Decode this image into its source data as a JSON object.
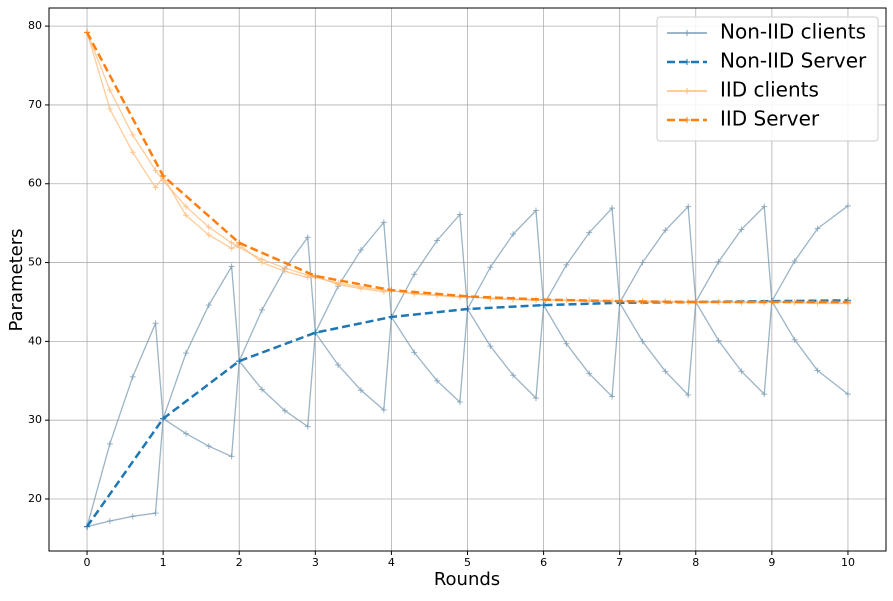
{
  "chart_data": {
    "type": "line",
    "xlabel": "Rounds",
    "ylabel": "Parameters",
    "xlim": [
      -0.5,
      10.5
    ],
    "ylim": [
      13.4,
      82.3
    ],
    "xticks": [
      0,
      1,
      2,
      3,
      4,
      5,
      6,
      7,
      8,
      9,
      10
    ],
    "yticks": [
      20,
      30,
      40,
      50,
      60,
      70,
      80
    ],
    "grid": true,
    "legend": "upper right",
    "series": [
      {
        "name": "Non-IID clients",
        "color": "#7a9bb3",
        "dash": "solid",
        "marker": "+",
        "x": [
          0,
          0.3,
          0.6,
          0.9,
          1,
          1.3,
          1.6,
          1.9,
          2,
          2.3,
          2.6,
          2.9,
          3,
          3.3,
          3.6,
          3.9,
          4,
          4.3,
          4.6,
          4.9,
          5,
          5.3,
          5.6,
          5.9,
          6,
          6.3,
          6.6,
          6.9,
          7,
          7.3,
          7.6,
          7.9,
          8,
          8.3,
          8.6,
          8.9,
          9,
          9.3,
          9.6,
          10
        ],
        "lines": [
          [
            16.5,
            27,
            35.5,
            42.3,
            30.2,
            28.3,
            26.7,
            25.4,
            37.5,
            44.0,
            49.2,
            53.2,
            41.1,
            37.0,
            33.8,
            31.3,
            43.1,
            48.5,
            52.8,
            56.1,
            44.1,
            39.4,
            35.7,
            32.8,
            44.6,
            49.7,
            53.8,
            56.9,
            44.9,
            40.0,
            36.2,
            33.2,
            45.0,
            50.1,
            54.2,
            57.1,
            45.1,
            40.2,
            36.3,
            33.3
          ],
          [
            16.5,
            17.2,
            17.8,
            18.2,
            30.2,
            38.5,
            44.6,
            49.5,
            37.5,
            33.9,
            31.2,
            29.2,
            41.1,
            47.0,
            51.6,
            55.1,
            43.1,
            38.6,
            35.0,
            32.3,
            44.1,
            49.4,
            53.6,
            56.6,
            44.6,
            39.7,
            35.9,
            33.0,
            44.9,
            50.0,
            54.1,
            57.1,
            45.0,
            40.1,
            36.2,
            33.3,
            45.1,
            50.2,
            54.3,
            57.2
          ]
        ]
      },
      {
        "name": "Non-IID Server",
        "color": "#1f77b4",
        "dash": "dashed",
        "marker": "+",
        "x": [
          0,
          1,
          2,
          3,
          4,
          5,
          6,
          7,
          8,
          9,
          10
        ],
        "lines": [
          [
            16.5,
            30.2,
            37.5,
            41.1,
            43.1,
            44.1,
            44.6,
            44.9,
            45.0,
            45.1,
            45.2
          ]
        ]
      },
      {
        "name": "IID clients",
        "color": "#ffbb78",
        "dash": "solid",
        "marker": "+",
        "x": [
          0,
          0.3,
          0.6,
          0.9,
          1,
          1.3,
          1.6,
          1.9,
          2,
          2.3,
          2.6,
          2.9,
          3,
          3.3,
          3.6,
          3.9,
          4,
          4.3,
          4.6,
          4.9,
          5,
          5.3,
          5.6,
          5.9,
          6,
          6.3,
          6.6,
          6.9,
          7,
          7.3,
          7.6,
          7.9,
          8,
          8.3,
          8.6,
          8.9,
          9,
          9.3,
          9.6,
          10
        ],
        "lines": [
          [
            79.2,
            71.9,
            66.2,
            61.7,
            60.4,
            57.1,
            54.5,
            52.5,
            51.9,
            50.4,
            49.3,
            48.4,
            48.1,
            47.4,
            46.9,
            46.5,
            46.4,
            46.1,
            45.9,
            45.7,
            45.6,
            45.5,
            45.4,
            45.3,
            45.3,
            45.2,
            45.2,
            45.1,
            45.1,
            45.1,
            45.1,
            45.0,
            45.0,
            45.0,
            45.0,
            45.0,
            45.0,
            45.0,
            44.9,
            44.9
          ],
          [
            79.2,
            69.5,
            64.0,
            59.5,
            60.9,
            56.0,
            53.5,
            51.8,
            52.3,
            50.0,
            48.9,
            48.1,
            48.3,
            47.2,
            46.7,
            46.3,
            46.5,
            46.0,
            45.8,
            45.6,
            45.7,
            45.4,
            45.3,
            45.2,
            45.3,
            45.2,
            45.1,
            45.1,
            45.1,
            45.0,
            45.0,
            45.0,
            45.0,
            45.0,
            44.9,
            44.9,
            45.0,
            44.9,
            44.8,
            44.8
          ]
        ]
      },
      {
        "name": "IID Server",
        "color": "#ff7f0e",
        "dash": "dashed",
        "marker": "+",
        "x": [
          0,
          1,
          2,
          3,
          4,
          5,
          6,
          7,
          8,
          9,
          10
        ],
        "lines": [
          [
            79.2,
            61.0,
            52.5,
            48.3,
            46.5,
            45.7,
            45.3,
            45.1,
            45.0,
            45.0,
            45.0
          ]
        ]
      }
    ]
  }
}
